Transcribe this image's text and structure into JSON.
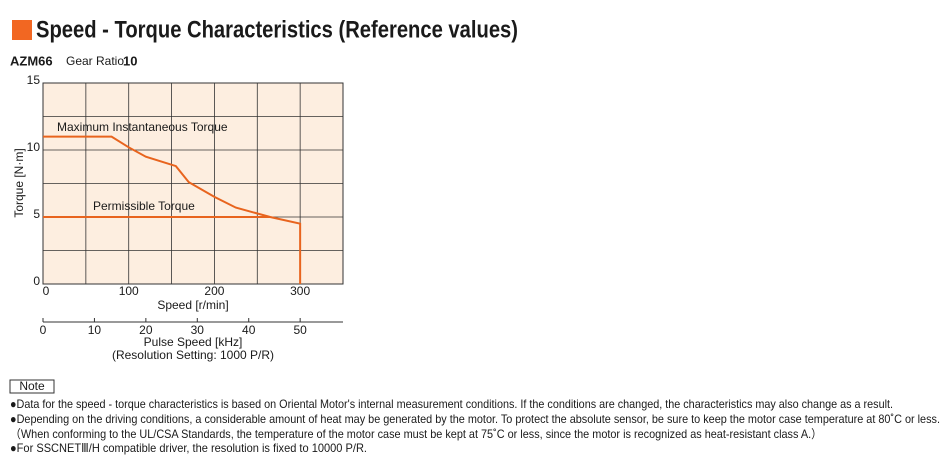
{
  "header": {
    "title": "Speed - Torque Characteristics (Reference values)"
  },
  "chart_data": {
    "type": "line",
    "model": "AZM66",
    "gear_label": "Gear Ratio",
    "gear_ratio": 10,
    "x_label": "Speed [r/min]",
    "y_label": "Torque [N·m]",
    "x2_label": "Pulse Speed [kHz]",
    "x2_note": "(Resolution Setting: 1000 P/R)",
    "xlim": [
      0,
      350
    ],
    "xticks": [
      0,
      100,
      200,
      300
    ],
    "minor_xticks": [
      50,
      150,
      250,
      350
    ],
    "ylim": [
      0,
      15
    ],
    "yticks": [
      0,
      5,
      10,
      15
    ],
    "minor_yticks": [
      2.5,
      7.5,
      12.5
    ],
    "x2lim": [
      0,
      58.33
    ],
    "x2ticks": [
      0,
      10,
      20,
      30,
      40,
      50
    ],
    "grid": true,
    "background": "#fdeee0",
    "series": [
      {
        "name": "Maximum Instantaneous Torque",
        "color": "#e8641e",
        "x": [
          0,
          80,
          100,
          120,
          155,
          170,
          200,
          225,
          265,
          300,
          300
        ],
        "values": [
          11,
          11,
          10.2,
          9.5,
          8.8,
          7.6,
          6.5,
          5.7,
          5,
          4.5,
          0
        ]
      },
      {
        "name": "Permissible Torque",
        "color": "#e8641e",
        "x": [
          0,
          265
        ],
        "values": [
          5,
          5
        ]
      }
    ]
  },
  "notes": {
    "label": "Note",
    "items": [
      "●Data for the speed - torque characteristics is based on Oriental Motor's internal measurement conditions. If the conditions are changed, the characteristics may also change as a result.",
      "●Depending on the driving conditions, a considerable amount of heat may be generated by the motor.  To protect the absolute sensor, be sure to keep the motor case temperature at 80˚C or less.",
      "（When conforming to the UL/CSA Standards, the temperature of the motor case must be kept at 75˚C or less, since the motor is recognized as heat-resistant class A.）",
      "●For SSCNETⅢ/H compatible driver, the resolution is fixed to 10000 P/R."
    ]
  }
}
